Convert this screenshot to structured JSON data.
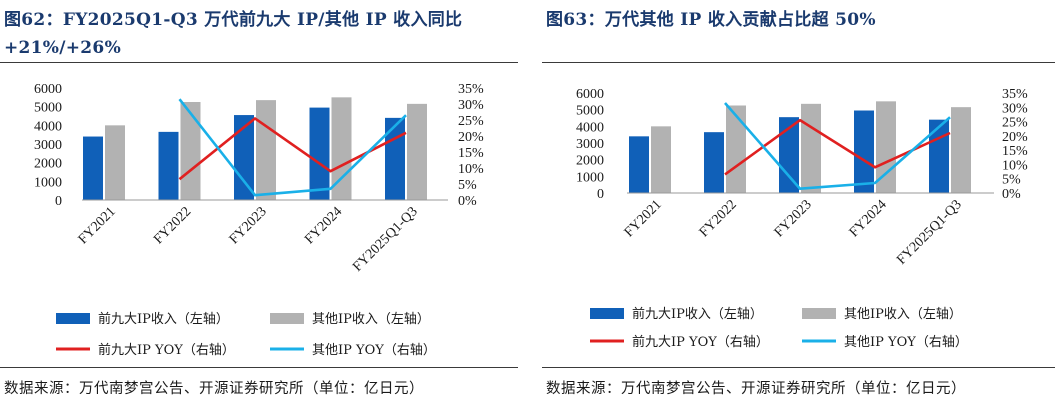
{
  "panels": [
    {
      "title_line1": "图62：FY2025Q1-Q3 万代前九大 IP/其他 IP 收入同比",
      "title_line2": "+21%/+26%",
      "source": "数据来源：万代南梦宫公告、开源证券研究所（单位：亿日元）"
    },
    {
      "title_line1": "图63：万代其他 IP 收入贡献占比超 50%",
      "title_line2": "",
      "source": "数据来源：万代南梦宫公告、开源证券研究所（单位：亿日元）"
    }
  ],
  "chart_data": [
    {
      "type": "bar",
      "categories": [
        "FY2021",
        "FY2022",
        "FY2023",
        "FY2024",
        "FY2025Q1-Q3"
      ],
      "series": [
        {
          "name": "前九大IP收入（左轴）",
          "type": "bar",
          "axis": "left",
          "color": "#1060b8",
          "values": [
            3400,
            3650,
            4550,
            4950,
            4400
          ]
        },
        {
          "name": "其他IP收入（左轴）",
          "type": "bar",
          "axis": "left",
          "color": "#b2b2b2",
          "values": [
            4000,
            5250,
            5350,
            5500,
            5150
          ]
        },
        {
          "name": "前九大IP YOY（右轴）",
          "type": "line",
          "axis": "right",
          "color": "#e02020",
          "values": [
            null,
            6.5,
            25.5,
            9,
            21
          ]
        },
        {
          "name": "其他IP YOY（右轴）",
          "type": "line",
          "axis": "right",
          "color": "#1ab0e8",
          "values": [
            null,
            31.5,
            1.5,
            3.5,
            26.5
          ]
        }
      ],
      "y_left": {
        "min": 0,
        "max": 6000,
        "step": 1000,
        "ticks": [
          "0",
          "1000",
          "2000",
          "3000",
          "4000",
          "5000",
          "6000"
        ]
      },
      "y_right": {
        "min": 0,
        "max": 35,
        "step": 5,
        "ticks": [
          "0%",
          "5%",
          "10%",
          "15%",
          "20%",
          "25%",
          "30%",
          "35%"
        ]
      },
      "grid": false,
      "legend_position": "bottom"
    },
    {
      "type": "bar",
      "categories": [
        "FY2021",
        "FY2022",
        "FY2023",
        "FY2024",
        "FY2025Q1-Q3"
      ],
      "series": [
        {
          "name": "前九大IP收入（左轴）",
          "type": "bar",
          "axis": "left",
          "color": "#1060b8",
          "values": [
            3400,
            3650,
            4550,
            4950,
            4400
          ]
        },
        {
          "name": "其他IP收入（左轴）",
          "type": "bar",
          "axis": "left",
          "color": "#b2b2b2",
          "values": [
            4000,
            5250,
            5350,
            5500,
            5150
          ]
        },
        {
          "name": "前九大IP YOY（右轴）",
          "type": "line",
          "axis": "right",
          "color": "#e02020",
          "values": [
            null,
            6.5,
            25.5,
            9,
            21
          ]
        },
        {
          "name": "其他IP YOY（右轴）",
          "type": "line",
          "axis": "right",
          "color": "#1ab0e8",
          "values": [
            null,
            31.5,
            1.5,
            3.5,
            26.5
          ]
        }
      ],
      "y_left": {
        "min": 0,
        "max": 6000,
        "step": 1000,
        "ticks": [
          "0",
          "1000",
          "2000",
          "3000",
          "4000",
          "5000",
          "6000"
        ]
      },
      "y_right": {
        "min": 0,
        "max": 35,
        "step": 5,
        "ticks": [
          "0%",
          "5%",
          "10%",
          "15%",
          "20%",
          "25%",
          "30%",
          "35%"
        ]
      },
      "grid": false,
      "legend_position": "bottom"
    }
  ]
}
